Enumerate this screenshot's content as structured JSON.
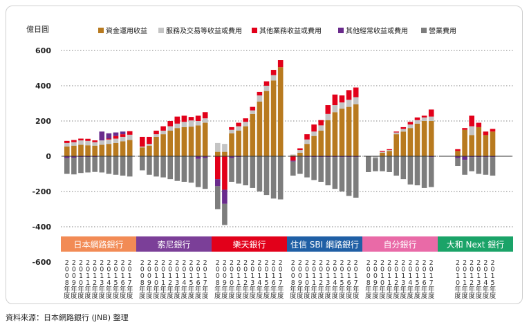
{
  "chart_data": {
    "type": "bar",
    "stacked": true,
    "ylabel": "億日圓",
    "ylim": [
      -600,
      600
    ],
    "yticks": [
      -600,
      -400,
      -200,
      0,
      200,
      400,
      600
    ],
    "grid": "dotted horizontal",
    "legend_position": "top",
    "series_keys": [
      "fund",
      "service",
      "other_biz",
      "other_recurring",
      "opex"
    ],
    "series": [
      {
        "key": "fund",
        "name": "資金運用收益",
        "color": "#b87a1f"
      },
      {
        "key": "service",
        "name": "服務及交易等收益或費用",
        "color": "#c4c4c4"
      },
      {
        "key": "other_biz",
        "name": "其他業務收益或費用",
        "color": "#e2001a"
      },
      {
        "key": "other_recurring",
        "name": "其他經常收益或費用",
        "color": "#6a2b8c"
      },
      {
        "key": "opex",
        "name": "營業費用",
        "color": "#7d7d7d"
      }
    ],
    "year_labels": [
      "2008年度",
      "2009年度",
      "2010年度",
      "2011年度",
      "2012年度",
      "2013年度",
      "2014年度",
      "2015年度",
      "2016年度",
      "2017年度"
    ],
    "groups": [
      {
        "name": "日本網路銀行",
        "color": "#f28b55",
        "start_year_index": 0,
        "values": [
          {
            "fund": 55,
            "service": 20,
            "other_biz": 12,
            "other_recurring": -10,
            "opex": -90
          },
          {
            "fund": 60,
            "service": 20,
            "other_biz": 12,
            "other_recurring": -8,
            "opex": -95
          },
          {
            "fund": 65,
            "service": 25,
            "other_biz": 10,
            "other_recurring": -5,
            "opex": -90
          },
          {
            "fund": 62,
            "service": 25,
            "other_biz": 12,
            "other_recurring": -4,
            "opex": -88
          },
          {
            "fund": 60,
            "service": 20,
            "other_biz": 10,
            "other_recurring": -4,
            "opex": -85
          },
          {
            "fund": 65,
            "service": 25,
            "other_biz": 0,
            "other_recurring": 50,
            "opex": -92
          },
          {
            "fund": 70,
            "service": 25,
            "other_biz": 5,
            "other_recurring": 30,
            "opex": -100
          },
          {
            "fund": 75,
            "service": 25,
            "other_biz": 15,
            "other_recurring": 20,
            "opex": -105
          },
          {
            "fund": 85,
            "service": 25,
            "other_biz": 15,
            "other_recurring": 15,
            "opex": -110
          },
          {
            "fund": 92,
            "service": 30,
            "other_biz": 20,
            "other_recurring": 0,
            "opex": -115
          }
        ]
      },
      {
        "name": "索尼銀行",
        "color": "#7b3f98",
        "start_year_index": 0,
        "values": [
          {
            "fund": 50,
            "service": 5,
            "other_biz": 55,
            "other_recurring": 0,
            "opex": -80
          },
          {
            "fund": 60,
            "service": 10,
            "other_biz": 40,
            "other_recurring": 0,
            "opex": -105
          },
          {
            "fund": 110,
            "service": 15,
            "other_biz": 20,
            "other_recurring": 0,
            "opex": -115
          },
          {
            "fund": 125,
            "service": 20,
            "other_biz": 25,
            "other_recurring": 0,
            "opex": -120
          },
          {
            "fund": 145,
            "service": 25,
            "other_biz": 30,
            "other_recurring": 0,
            "opex": -130
          },
          {
            "fund": 160,
            "service": 25,
            "other_biz": 40,
            "other_recurring": 0,
            "opex": -140
          },
          {
            "fund": 165,
            "service": 30,
            "other_biz": 35,
            "other_recurring": 0,
            "opex": -145
          },
          {
            "fund": 168,
            "service": 35,
            "other_biz": 20,
            "other_recurring": 0,
            "opex": -150
          },
          {
            "fund": 175,
            "service": 25,
            "other_biz": 30,
            "other_recurring": -15,
            "opex": -160
          },
          {
            "fund": 190,
            "service": 25,
            "other_biz": 35,
            "other_recurring": -10,
            "opex": -175
          }
        ]
      },
      {
        "name": "樂天銀行",
        "color": "#e2001a",
        "start_year_index": 0,
        "values": [
          {
            "fund": 25,
            "service": 50,
            "other_biz": -130,
            "other_recurring": -40,
            "opex": -130
          },
          {
            "fund": 25,
            "service": 45,
            "other_biz": -190,
            "other_recurring": -80,
            "opex": -120
          },
          {
            "fund": 130,
            "service": 20,
            "other_biz": 15,
            "other_recurring": -10,
            "opex": -135
          },
          {
            "fund": 145,
            "service": 25,
            "other_biz": 20,
            "other_recurring": -5,
            "opex": -150
          },
          {
            "fund": 170,
            "service": 25,
            "other_biz": 20,
            "other_recurring": 0,
            "opex": -165
          },
          {
            "fund": 240,
            "service": 20,
            "other_biz": 20,
            "other_recurring": 0,
            "opex": -180
          },
          {
            "fund": 310,
            "service": 35,
            "other_biz": 20,
            "other_recurring": 0,
            "opex": -200
          },
          {
            "fund": 370,
            "service": 30,
            "other_biz": 25,
            "other_recurring": 0,
            "opex": -220
          },
          {
            "fund": 430,
            "service": 30,
            "other_biz": 30,
            "other_recurring": 0,
            "opex": -240
          },
          {
            "fund": 505,
            "service": 0,
            "other_biz": 40,
            "other_recurring": 0,
            "opex": -245
          }
        ]
      },
      {
        "name": "住信 SBI 網路銀行",
        "color": "#1f5fa5",
        "start_year_index": 0,
        "values": [
          {
            "fund": 5,
            "service": 5,
            "other_biz": -25,
            "other_recurring": -5,
            "opex": -80
          },
          {
            "fund": 20,
            "service": 15,
            "other_biz": 10,
            "other_recurring": 0,
            "opex": -100
          },
          {
            "fund": 70,
            "service": 25,
            "other_biz": 30,
            "other_recurring": -5,
            "opex": -115
          },
          {
            "fund": 115,
            "service": 25,
            "other_biz": 40,
            "other_recurring": -5,
            "opex": -130
          },
          {
            "fund": 145,
            "service": 30,
            "other_biz": 30,
            "other_recurring": -5,
            "opex": -140
          },
          {
            "fund": 205,
            "service": 35,
            "other_biz": 50,
            "other_recurring": -5,
            "opex": -160
          },
          {
            "fund": 250,
            "service": 40,
            "other_biz": 60,
            "other_recurring": -5,
            "opex": -180
          },
          {
            "fund": 270,
            "service": 35,
            "other_biz": 40,
            "other_recurring": -5,
            "opex": -195
          },
          {
            "fund": 280,
            "service": 40,
            "other_biz": 55,
            "other_recurring": -5,
            "opex": -220
          },
          {
            "fund": 295,
            "service": 40,
            "other_biz": 55,
            "other_recurring": -5,
            "opex": -230
          }
        ]
      },
      {
        "name": "自分銀行",
        "color": "#e96aa7",
        "start_year_index": 0,
        "values": [
          {
            "fund": 0,
            "service": 0,
            "other_biz": 0,
            "other_recurring": 0,
            "opex": -90
          },
          {
            "fund": 0,
            "service": -10,
            "other_biz": 0,
            "other_recurring": 0,
            "opex": -75
          },
          {
            "fund": 20,
            "service": 5,
            "other_biz": 5,
            "other_recurring": 0,
            "opex": -85
          },
          {
            "fund": 30,
            "service": 5,
            "other_biz": 5,
            "other_recurring": 0,
            "opex": -90
          },
          {
            "fund": 125,
            "service": 10,
            "other_biz": 5,
            "other_recurring": 0,
            "opex": -110
          },
          {
            "fund": 140,
            "service": 15,
            "other_biz": 10,
            "other_recurring": 0,
            "opex": -130
          },
          {
            "fund": 160,
            "service": 20,
            "other_biz": 15,
            "other_recurring": 0,
            "opex": -160
          },
          {
            "fund": 185,
            "service": 20,
            "other_biz": 15,
            "other_recurring": 0,
            "opex": -165
          },
          {
            "fund": 200,
            "service": 20,
            "other_biz": 10,
            "other_recurring": 0,
            "opex": -180
          },
          {
            "fund": 200,
            "service": 25,
            "other_biz": 40,
            "other_recurring": -5,
            "opex": -170
          }
        ]
      },
      {
        "name": "大和 Next 銀行",
        "color": "#1aa368",
        "start_year_index": 2,
        "values": [
          {
            "fund": 30,
            "service": 0,
            "other_biz": 10,
            "other_recurring": -10,
            "opex": -45
          },
          {
            "fund": 150,
            "service": 0,
            "other_biz": 10,
            "other_recurring": -20,
            "opex": -85
          },
          {
            "fund": 120,
            "service": 50,
            "other_biz": 60,
            "other_recurring": -5,
            "opex": -80
          },
          {
            "fund": 165,
            "service": 0,
            "other_biz": 25,
            "other_recurring": -5,
            "opex": -95
          },
          {
            "fund": 120,
            "service": 0,
            "other_biz": 20,
            "other_recurring": -5,
            "opex": -100
          },
          {
            "fund": 140,
            "service": 0,
            "other_biz": 15,
            "other_recurring": -5,
            "opex": -105
          }
        ]
      }
    ]
  },
  "source_note": "資料來源：日本網路銀行 (JNB) 整理"
}
